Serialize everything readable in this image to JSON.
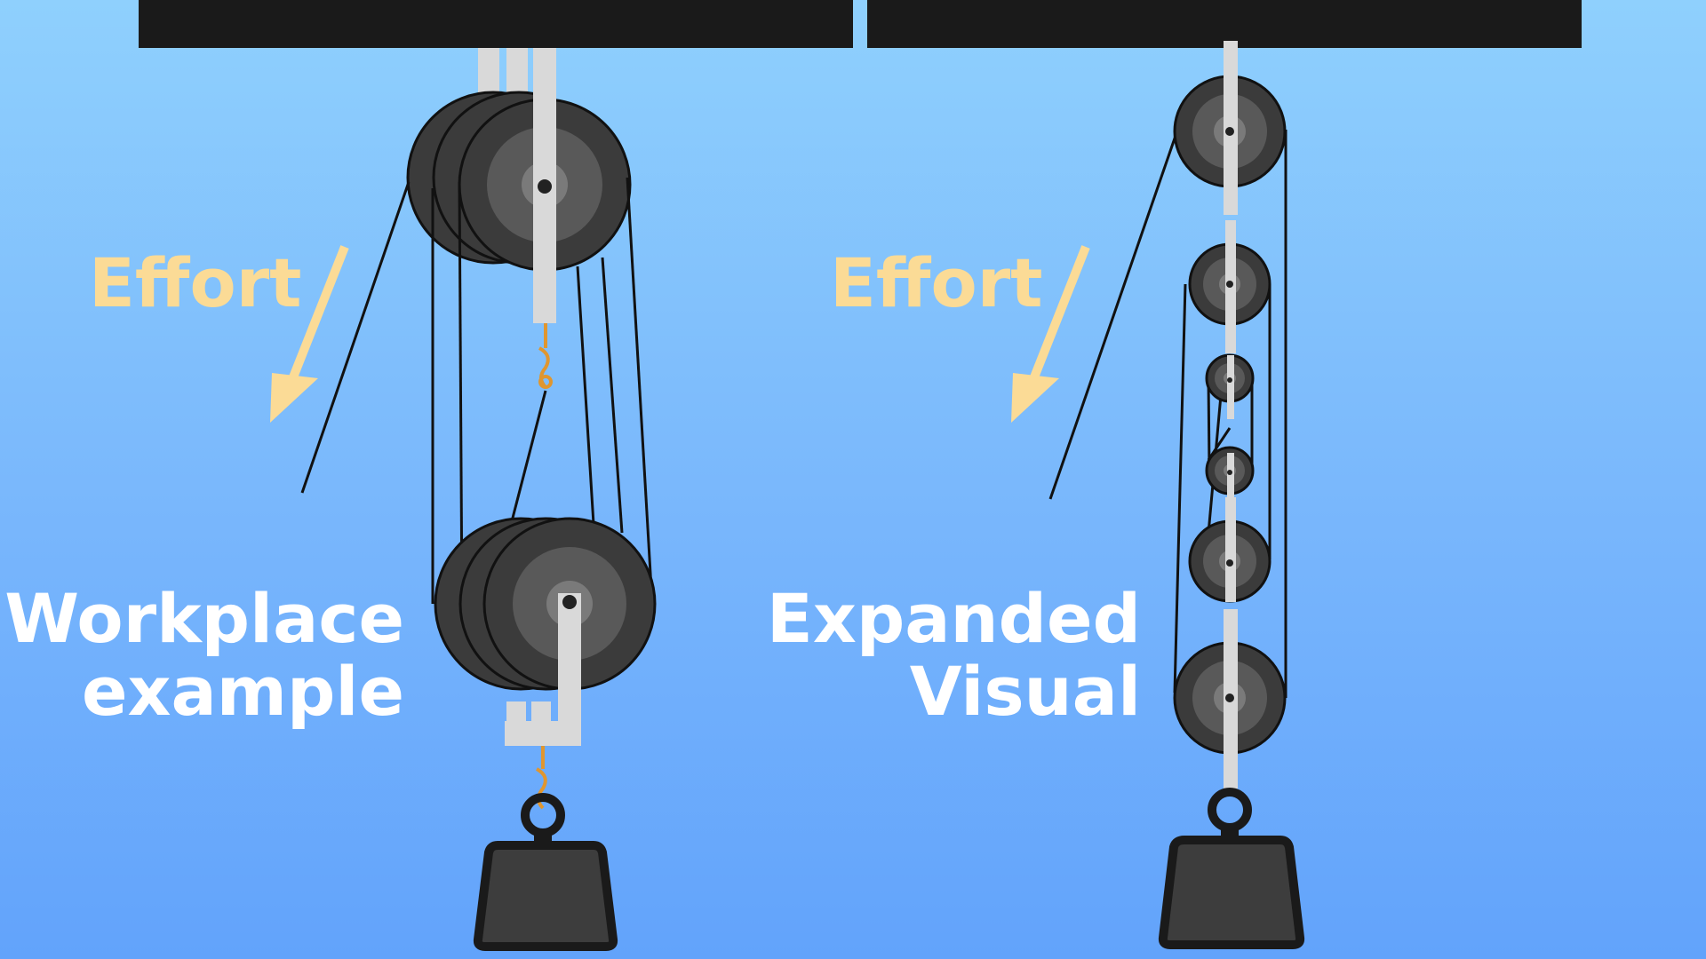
{
  "colors": {
    "beam": "#1a1a1a",
    "sheave_outer": "#3b3b3b",
    "sheave_mid": "#595959",
    "sheave_hub": "#7a7a7a",
    "sheave_rim": "#111111",
    "strap": "#d9d9d9",
    "rope": "#111111",
    "hook": "#e0962f",
    "arrow": "#fbdb96",
    "effort_text": "#fbdb96",
    "caption_text": "#ffffff",
    "weight": "#3d3d3d",
    "weight_border": "#1a1a1a"
  },
  "left_panel": {
    "effort_label": "Effort",
    "caption_line1": "Workplace",
    "caption_line2": "example",
    "top_block_sheaves": 3,
    "bottom_block_sheaves": 3
  },
  "right_panel": {
    "effort_label": "Effort",
    "caption_line1": "Expanded",
    "caption_line2": "Visual",
    "sheave_count": 6
  },
  "icons": {
    "arrow": "down-left-arrow-icon",
    "hook": "snap-hook-icon",
    "weight": "kettle-weight-icon"
  }
}
